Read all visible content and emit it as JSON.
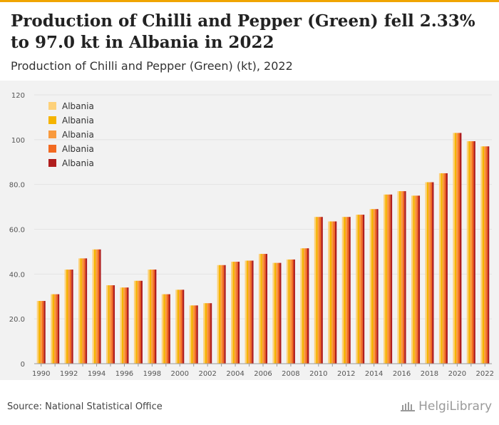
{
  "header": {
    "title": "Production of Chilli and Pepper (Green) fell 2.33% to 97.0 kt in Albania in 2022",
    "subtitle": "Production of Chilli and Pepper (Green) (kt), 2022"
  },
  "footer": {
    "source": "Source: National Statistical Office",
    "logo_text": "HelgiLibrary",
    "logo_icon": "library-building-icon"
  },
  "colors": {
    "series": [
      "#fdd17a",
      "#f5b400",
      "#f99a3d",
      "#f26a21",
      "#b01e1e"
    ],
    "grid": "#e3e3e3",
    "axis_text": "#555555"
  },
  "chart_data": {
    "type": "bar",
    "title": "Production of Chilli and Pepper (Green) (kt), 2022",
    "xlabel": "",
    "ylabel": "",
    "ylim": [
      0,
      120
    ],
    "yticks": [
      "0",
      "20.0",
      "40.0",
      "60.0",
      "80.0",
      "100",
      "120"
    ],
    "x_tick_labels": [
      "1990",
      "1992",
      "1994",
      "1996",
      "1998",
      "2000",
      "2002",
      "2004",
      "2006",
      "2008",
      "2010",
      "2012",
      "2014",
      "2016",
      "2018",
      "2020",
      "2022"
    ],
    "categories": [
      "1990",
      "1991",
      "1992",
      "1993",
      "1994",
      "1995",
      "1996",
      "1997",
      "1998",
      "1999",
      "2000",
      "2001",
      "2002",
      "2003",
      "2004",
      "2005",
      "2006",
      "2007",
      "2008",
      "2009",
      "2010",
      "2011",
      "2012",
      "2013",
      "2014",
      "2015",
      "2016",
      "2017",
      "2018",
      "2019",
      "2020",
      "2021",
      "2022"
    ],
    "legend_position": "top-left",
    "grid": true,
    "series": [
      {
        "name": "Albania",
        "values": [
          28,
          31,
          42,
          47,
          51,
          35,
          34,
          37,
          42,
          31,
          33,
          26,
          27,
          44,
          45.5,
          46,
          49,
          45,
          46.5,
          51.5,
          65.5,
          63.5,
          65.5,
          66.5,
          69,
          75.5,
          77,
          75,
          81,
          85,
          103,
          99.3,
          97
        ]
      },
      {
        "name": "Albania",
        "values": [
          28,
          31,
          42,
          47,
          51,
          35,
          34,
          37,
          42,
          31,
          33,
          26,
          27,
          44,
          45.5,
          46,
          49,
          45,
          46.5,
          51.5,
          65.5,
          63.5,
          65.5,
          66.5,
          69,
          75.5,
          77,
          75,
          81,
          85,
          103,
          99.3,
          97
        ]
      },
      {
        "name": "Albania",
        "values": [
          28,
          31,
          42,
          47,
          51,
          35,
          34,
          37,
          42,
          31,
          33,
          26,
          27,
          44,
          45.5,
          46,
          49,
          45,
          46.5,
          51.5,
          65.5,
          63.5,
          65.5,
          66.5,
          69,
          75.5,
          77,
          75,
          81,
          85,
          103,
          99.3,
          97
        ]
      },
      {
        "name": "Albania",
        "values": [
          28,
          31,
          42,
          47,
          51,
          35,
          34,
          37,
          42,
          31,
          33,
          26,
          27,
          44,
          45.5,
          46,
          49,
          45,
          46.5,
          51.5,
          65.5,
          63.5,
          65.5,
          66.5,
          69,
          75.5,
          77,
          75,
          81,
          85,
          103,
          99.3,
          97
        ]
      },
      {
        "name": "Albania",
        "values": [
          28,
          31,
          42,
          47,
          51,
          35,
          34,
          37,
          42,
          31,
          33,
          26,
          27,
          44,
          45.5,
          46,
          49,
          45,
          46.5,
          51.5,
          65.5,
          63.5,
          65.5,
          66.5,
          69,
          75.5,
          77,
          75,
          81,
          85,
          103,
          99.3,
          97
        ]
      }
    ]
  }
}
